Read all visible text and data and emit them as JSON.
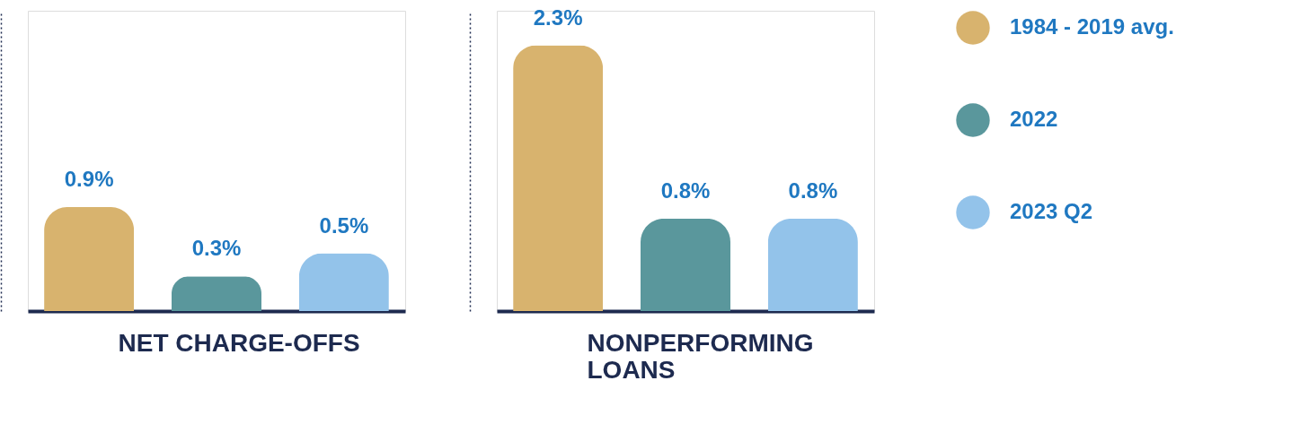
{
  "chart_data": [
    {
      "type": "bar",
      "xlabel": "NET CHARGE-OFFS",
      "categories": [
        null
      ],
      "data_labels": false,
      "legend": "right",
      "grid": false,
      "tick_labels": false,
      "series": [
        {
          "name": "1984 - 2019 avg.",
          "color": "#d8b36e",
          "values": [
            0.9
          ],
          "value_labels": [
            "0.9%"
          ]
        },
        {
          "name": "2022",
          "color": "#5a979c",
          "values": [
            0.3
          ],
          "value_labels": [
            "0.3%"
          ]
        },
        {
          "name": "2023 Q2",
          "color": "#93c3ea",
          "values": [
            0.5
          ],
          "value_labels": [
            "0.5%"
          ]
        }
      ]
    },
    {
      "type": "bar",
      "xlabel": "NONPERFORMING LOANS",
      "categories": [
        null
      ],
      "data_labels": false,
      "legend": "right",
      "grid": false,
      "tick_labels": false,
      "series": [
        {
          "name": "1984 - 2019 avg.",
          "color": "#d8b36e",
          "values": [
            2.3
          ],
          "value_labels": [
            "2.3%"
          ]
        },
        {
          "name": "2022",
          "color": "#5a979c",
          "values": [
            0.8
          ],
          "value_labels": [
            "0.8%"
          ]
        },
        {
          "name": "2023 Q2",
          "color": "#93c3ea",
          "values": [
            0.8
          ],
          "value_labels": [
            "0.8%"
          ]
        }
      ]
    }
  ]
}
